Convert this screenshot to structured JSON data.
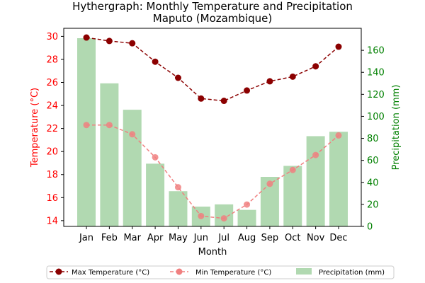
{
  "chart_data": {
    "type": "bar+line",
    "title": "Hythergraph: Monthly Temperature and Precipitation",
    "subtitle": "Maputo (Mozambique)",
    "xlabel": "Month",
    "ylabel_left": "Temperature (°C)",
    "ylabel_right": "Precipitation (mm)",
    "categories": [
      "Jan",
      "Feb",
      "Mar",
      "Apr",
      "May",
      "Jun",
      "Jul",
      "Aug",
      "Sep",
      "Oct",
      "Nov",
      "Dec"
    ],
    "ylim_left": [
      13.5,
      30.7
    ],
    "ylim_right": [
      0,
      180
    ],
    "yticks_left": [
      "14",
      "16",
      "18",
      "20",
      "22",
      "24",
      "26",
      "28",
      "30"
    ],
    "yticks_right": [
      "0",
      "20",
      "40",
      "60",
      "80",
      "100",
      "120",
      "140",
      "160"
    ],
    "series": [
      {
        "name": "Max Temperature (°C)",
        "axis": "left",
        "kind": "line",
        "style": "dashed-marker",
        "color": "#8b0000",
        "values": [
          29.9,
          29.6,
          29.4,
          27.8,
          26.4,
          24.6,
          24.4,
          25.3,
          26.1,
          26.5,
          27.4,
          29.1
        ]
      },
      {
        "name": "Min Temperature (°C)",
        "axis": "left",
        "kind": "line",
        "style": "dashed-marker",
        "color": "#f08080",
        "values": [
          22.3,
          22.3,
          21.5,
          19.5,
          16.9,
          14.4,
          14.2,
          15.4,
          17.2,
          18.4,
          19.7,
          21.4
        ]
      },
      {
        "name": "Precipitation (mm)",
        "axis": "right",
        "kind": "bar",
        "color": "#b1d9b1",
        "values": [
          171,
          130,
          106,
          57,
          32,
          18,
          20,
          15,
          45,
          55,
          82,
          86
        ]
      }
    ],
    "legend": {
      "placement": "bottom-center",
      "columns": 3
    },
    "colors": {
      "left_axis": "#ff0000",
      "right_axis": "#008000"
    },
    "grid": false
  }
}
